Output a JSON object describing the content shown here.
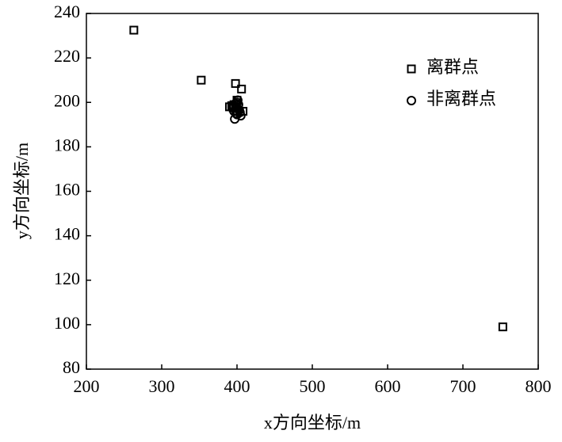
{
  "chart_data": {
    "type": "scatter",
    "xlabel": "x方向坐标/m",
    "ylabel": "y方向坐标/m",
    "xlim": [
      200,
      800
    ],
    "xticks": [
      200,
      300,
      400,
      500,
      600,
      700,
      800
    ],
    "ylim": [
      80,
      240
    ],
    "yticks": [
      80,
      100,
      120,
      140,
      160,
      180,
      200,
      220,
      240
    ],
    "legend": "upper right",
    "series": [
      {
        "name": "离群点",
        "marker": "square",
        "color": "#000000",
        "x": [
          263,
          352.5,
          398,
          406,
          753,
          390,
          393,
          396,
          402,
          408,
          400,
          395
        ],
        "values": [
          232.5,
          210,
          208.5,
          206,
          99,
          198,
          198.5,
          199,
          198,
          196,
          201,
          197.5
        ]
      },
      {
        "name": "非离群点",
        "marker": "circle",
        "color": "#000000",
        "x": [
          397,
          405,
          399,
          400,
          401,
          399,
          402,
          400,
          398,
          403,
          400,
          401,
          404,
          396
        ],
        "values": [
          192.5,
          194,
          195,
          196,
          197,
          198,
          199,
          200,
          199.5,
          196.5,
          194.5,
          201,
          195.5,
          196
        ]
      }
    ]
  }
}
